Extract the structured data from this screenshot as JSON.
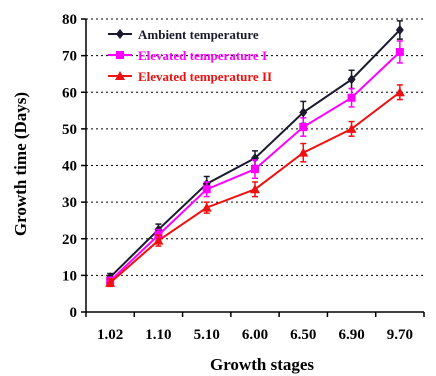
{
  "chart_data": {
    "type": "line",
    "title": "",
    "xlabel": "Growth stages",
    "ylabel": "Growth time (Days)",
    "categories": [
      "1.02",
      "1.10",
      "5.10",
      "6.00",
      "6.50",
      "6.90",
      "9.70"
    ],
    "ylim": [
      0,
      80
    ],
    "yticks": [
      "0",
      "10",
      "20",
      "30",
      "40",
      "50",
      "60",
      "70",
      "80"
    ],
    "grid": "horizontal-dashed",
    "legend_position": "top-left",
    "series": [
      {
        "name": "Ambient temperature",
        "values": [
          9.5,
          22.5,
          35,
          42,
          54.5,
          63.5,
          77
        ],
        "errors": [
          1,
          1.5,
          2,
          2,
          3,
          2.5,
          2.5
        ],
        "color": "#1a1a2e",
        "marker": "diamond"
      },
      {
        "name": "Elevated temperature I",
        "values": [
          8.5,
          21,
          33.5,
          39,
          50.5,
          58.5,
          71
        ],
        "errors": [
          1,
          1.5,
          2,
          2.5,
          2.5,
          2.5,
          3
        ],
        "color": "#ff00ff",
        "marker": "square"
      },
      {
        "name": "Elevated temperature II",
        "values": [
          8,
          19.5,
          28.5,
          33.5,
          43.5,
          50,
          60
        ],
        "errors": [
          1,
          1.5,
          1.5,
          2,
          2.5,
          2,
          2
        ],
        "color": "#ee1111",
        "marker": "triangle"
      }
    ]
  }
}
